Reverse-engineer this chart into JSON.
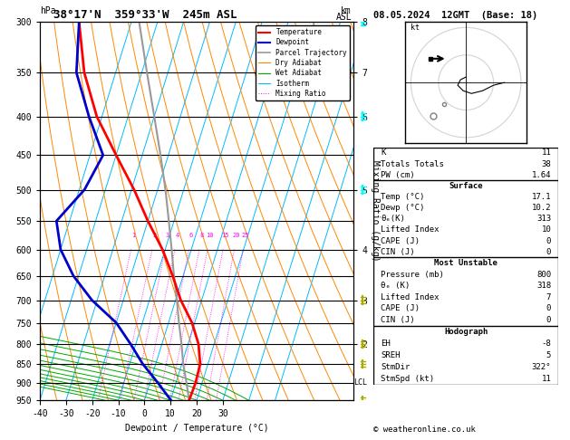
{
  "title_left": "38°17'N  359°33'W  245m ASL",
  "title_right": "08.05.2024  12GMT  (Base: 18)",
  "xlabel": "Dewpoint / Temperature (°C)",
  "ylabel_left": "hPa",
  "ylabel_mid": "Mixing Ratio (g/kg)",
  "pressure_levels": [
    300,
    350,
    400,
    450,
    500,
    550,
    600,
    650,
    700,
    750,
    800,
    850,
    900,
    950
  ],
  "lcl_pressure": 900,
  "temp_profile_temp": [
    17.1,
    17.5,
    17.0,
    14.0,
    9.0,
    2.0,
    -4.0,
    -11.0,
    -20.0,
    -29.0,
    -40.0,
    -52.0,
    -62.0,
    -70.0
  ],
  "temp_profile_pres": [
    950,
    900,
    850,
    800,
    750,
    700,
    650,
    600,
    550,
    500,
    450,
    400,
    350,
    300
  ],
  "dewp_profile_temp": [
    10.2,
    3.0,
    -5.0,
    -12.0,
    -20.0,
    -32.0,
    -42.0,
    -50.0,
    -55.0,
    -48.0,
    -45.0,
    -55.0,
    -65.0,
    -70.0
  ],
  "dewp_profile_pres": [
    950,
    900,
    850,
    800,
    750,
    700,
    650,
    600,
    550,
    500,
    450,
    400,
    350,
    300
  ],
  "parcel_temp": [
    17.1,
    14.0,
    10.5,
    7.5,
    4.0,
    0.5,
    -3.5,
    -7.5,
    -12.0,
    -17.0,
    -23.0,
    -30.0,
    -38.0,
    -47.0
  ],
  "parcel_pres": [
    950,
    900,
    850,
    800,
    750,
    700,
    650,
    600,
    550,
    500,
    450,
    400,
    350,
    300
  ],
  "color_temp": "#ff0000",
  "color_dewp": "#0000cc",
  "color_parcel": "#999999",
  "color_dry_adiabat": "#ff8800",
  "color_wet_adiabat": "#00aa00",
  "color_isotherm": "#00bbff",
  "color_mixing": "#ff00ff",
  "km_pressure_map": {
    "2": 800,
    "3": 700,
    "4": 600,
    "5": 500,
    "6": 400,
    "7": 350,
    "8": 300
  },
  "mixing_ratios": [
    1,
    2,
    3,
    4,
    6,
    8,
    10,
    15,
    20,
    25
  ],
  "sounding_data": {
    "K": 11,
    "Totals Totals": 38,
    "PW (cm)": 1.64,
    "surf_temp": 17.1,
    "surf_dewp": 10.2,
    "surf_theta_e": 313,
    "surf_lifted": 10,
    "surf_cape": 0,
    "surf_cin": 0,
    "mu_pressure": 800,
    "mu_theta_e": 318,
    "mu_lifted": 7,
    "mu_cape": 0,
    "mu_cin": 0,
    "hodo_EH": -8,
    "hodo_SREH": 5,
    "hodo_StmDir": 322,
    "hodo_StmSpd": 11
  },
  "wind_barb_pressures_cyan": [
    300,
    400,
    500
  ],
  "wind_barb_pressures_yellow": [
    700,
    800,
    850,
    950
  ]
}
